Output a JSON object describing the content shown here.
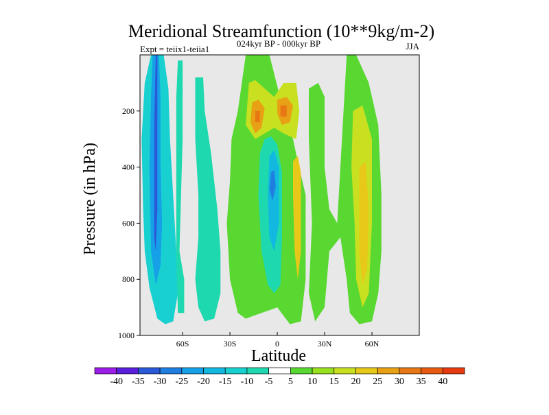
{
  "chart_data": {
    "type": "contour",
    "title": "Meridional Streamfunction (10**9kg/m-2)",
    "experiment_label": "Expt = teiix1-teiia1",
    "center_subtitle": "024kyr BP - 000kyr BP",
    "season": "JJA",
    "xlabel": "Latitude",
    "ylabel": "Pressure (in hPa)",
    "x_ticks": [
      {
        "value": -60,
        "label": "60S"
      },
      {
        "value": -30,
        "label": "30S"
      },
      {
        "value": 0,
        "label": "0"
      },
      {
        "value": 30,
        "label": "30N"
      },
      {
        "value": 60,
        "label": "60N"
      }
    ],
    "y_ticks": [
      {
        "value": 200,
        "label": "200"
      },
      {
        "value": 400,
        "label": "400"
      },
      {
        "value": 600,
        "label": "600"
      },
      {
        "value": 800,
        "label": "800"
      },
      {
        "value": 1000,
        "label": "1000"
      }
    ],
    "xlim": [
      -87,
      90
    ],
    "ylim": [
      1000,
      0
    ],
    "background_color": "#e8e8e8",
    "colorbar": {
      "labels": [
        "-40",
        "-35",
        "-30",
        "-25",
        "-20",
        "-15",
        "-10",
        "-5",
        "5",
        "10",
        "15",
        "20",
        "25",
        "30",
        "35",
        "40"
      ],
      "colors": [
        "#9b1de6",
        "#5a1fdc",
        "#2a5ad8",
        "#1f7ee0",
        "#15a0e8",
        "#12b8e0",
        "#18d0d0",
        "#1ed8b0",
        "#ffffff",
        "#5ad832",
        "#98e020",
        "#c8e020",
        "#e8c818",
        "#e8a015",
        "#e87815",
        "#e85a12",
        "#e83a10"
      ]
    },
    "regions": [
      {
        "name": "southern-neg-cell-outer",
        "level": -10,
        "color": "#18d0d0",
        "pts": [
          [
            -86,
            300
          ],
          [
            -84,
            100
          ],
          [
            -80,
            0
          ],
          [
            -72,
            0
          ],
          [
            -69,
            120
          ],
          [
            -68,
            300
          ],
          [
            -66,
            500
          ],
          [
            -64,
            700
          ],
          [
            -63,
            850
          ],
          [
            -66,
            950
          ],
          [
            -71,
            960
          ],
          [
            -76,
            940
          ],
          [
            -81,
            830
          ],
          [
            -84,
            700
          ],
          [
            -85,
            550
          ]
        ]
      },
      {
        "name": "southern-neg-cell-mid",
        "level": -20,
        "color": "#15a0e8",
        "pts": [
          [
            -81,
            400
          ],
          [
            -80,
            150
          ],
          [
            -79,
            0
          ],
          [
            -75,
            0
          ],
          [
            -74,
            150
          ],
          [
            -74,
            400
          ],
          [
            -73,
            600
          ],
          [
            -74,
            750
          ],
          [
            -77,
            820
          ],
          [
            -80,
            700
          ]
        ]
      },
      {
        "name": "southern-neg-cell-core",
        "level": -30,
        "color": "#2a5ad8",
        "pts": [
          [
            -78,
            500
          ],
          [
            -78,
            250
          ],
          [
            -77,
            0
          ],
          [
            -76,
            0
          ],
          [
            -76,
            250
          ],
          [
            -76,
            550
          ],
          [
            -77,
            700
          ],
          [
            -78,
            650
          ]
        ]
      },
      {
        "name": "midlat-south-neg",
        "level": -5,
        "color": "#1ed8b0",
        "pts": [
          [
            -63,
            20
          ],
          [
            -60,
            20
          ],
          [
            -60,
            300
          ],
          [
            -61,
            500
          ],
          [
            -62,
            700
          ],
          [
            -59,
            800
          ],
          [
            -59,
            920
          ],
          [
            -63,
            920
          ],
          [
            -64,
            700
          ],
          [
            -64,
            450
          ],
          [
            -64,
            150
          ]
        ]
      },
      {
        "name": "midlat-south-neg2",
        "level": -5,
        "color": "#1ed8b0",
        "pts": [
          [
            -52,
            80
          ],
          [
            -47,
            80
          ],
          [
            -46,
            200
          ],
          [
            -42,
            350
          ],
          [
            -38,
            550
          ],
          [
            -36,
            700
          ],
          [
            -36,
            850
          ],
          [
            -40,
            940
          ],
          [
            -46,
            950
          ],
          [
            -50,
            900
          ],
          [
            -52,
            800
          ],
          [
            -50,
            650
          ],
          [
            -50,
            500
          ],
          [
            -52,
            300
          ]
        ]
      },
      {
        "name": "isolated-neg-dot",
        "level": -5,
        "color": "#1ed8b0",
        "pts": [
          [
            -61,
            870
          ],
          [
            -60,
            870
          ],
          [
            -60,
            890
          ],
          [
            -61,
            890
          ]
        ]
      },
      {
        "name": "tropical-pos-band",
        "level": 10,
        "color": "#5ad832",
        "pts": [
          [
            -30,
            450
          ],
          [
            -29,
            300
          ],
          [
            -25,
            200
          ],
          [
            -20,
            0
          ],
          [
            -5,
            0
          ],
          [
            4,
            200
          ],
          [
            10,
            300
          ],
          [
            13,
            380
          ],
          [
            18,
            500
          ],
          [
            18,
            800
          ],
          [
            15,
            950
          ],
          [
            8,
            960
          ],
          [
            0,
            900
          ],
          [
            -10,
            920
          ],
          [
            -20,
            940
          ],
          [
            -25,
            920
          ],
          [
            -30,
            800
          ],
          [
            -32,
            600
          ]
        ]
      },
      {
        "name": "tropical-pos-upper",
        "level": 20,
        "color": "#c8e020",
        "pts": [
          [
            -18,
            100
          ],
          [
            -14,
            90
          ],
          [
            -8,
            120
          ],
          [
            -2,
            150
          ],
          [
            4,
            100
          ],
          [
            12,
            100
          ],
          [
            14,
            200
          ],
          [
            12,
            300
          ],
          [
            4,
            280
          ],
          [
            -2,
            260
          ],
          [
            -8,
            280
          ],
          [
            -14,
            300
          ],
          [
            -20,
            250
          ]
        ]
      },
      {
        "name": "tropical-pos-jet-w",
        "level": 30,
        "color": "#e8a015",
        "pts": [
          [
            -16,
            170
          ],
          [
            -12,
            160
          ],
          [
            -8,
            190
          ],
          [
            -10,
            260
          ],
          [
            -14,
            280
          ],
          [
            -17,
            240
          ]
        ]
      },
      {
        "name": "tropical-pos-jet-e",
        "level": 30,
        "color": "#e8a015",
        "pts": [
          [
            0,
            160
          ],
          [
            6,
            150
          ],
          [
            10,
            180
          ],
          [
            8,
            240
          ],
          [
            3,
            250
          ],
          [
            0,
            210
          ]
        ]
      },
      {
        "name": "tropical-pos-jet-w-core",
        "level": 35,
        "color": "#e87815",
        "pts": [
          [
            -14,
            200
          ],
          [
            -11,
            200
          ],
          [
            -11,
            240
          ],
          [
            -14,
            240
          ]
        ]
      },
      {
        "name": "tropical-pos-jet-e-core",
        "level": 35,
        "color": "#e87815",
        "pts": [
          [
            2,
            180
          ],
          [
            6,
            180
          ],
          [
            6,
            220
          ],
          [
            2,
            220
          ]
        ]
      },
      {
        "name": "nh-pos-midlat-outer",
        "level": 10,
        "color": "#5ad832",
        "pts": [
          [
            20,
            120
          ],
          [
            26,
            100
          ],
          [
            30,
            150
          ],
          [
            30,
            400
          ],
          [
            33,
            550
          ],
          [
            38,
            600
          ],
          [
            44,
            0
          ],
          [
            50,
            0
          ],
          [
            58,
            100
          ],
          [
            64,
            250
          ],
          [
            66,
            500
          ],
          [
            66,
            700
          ],
          [
            64,
            850
          ],
          [
            60,
            950
          ],
          [
            52,
            960
          ],
          [
            46,
            920
          ],
          [
            44,
            800
          ],
          [
            40,
            650
          ],
          [
            33,
            700
          ],
          [
            30,
            900
          ],
          [
            24,
            950
          ],
          [
            20,
            850
          ],
          [
            22,
            600
          ],
          [
            20,
            300
          ]
        ]
      },
      {
        "name": "nh-pos-midlat-inner",
        "level": 20,
        "color": "#c8e020",
        "pts": [
          [
            48,
            200
          ],
          [
            54,
            180
          ],
          [
            60,
            300
          ],
          [
            60,
            600
          ],
          [
            58,
            850
          ],
          [
            54,
            900
          ],
          [
            50,
            800
          ],
          [
            49,
            600
          ],
          [
            47,
            400
          ]
        ]
      },
      {
        "name": "nh-pos-midlat-core",
        "level": 25,
        "color": "#e8c818",
        "pts": [
          [
            52,
            400
          ],
          [
            56,
            380
          ],
          [
            58,
            550
          ],
          [
            57,
            760
          ],
          [
            54,
            820
          ],
          [
            52,
            700
          ]
        ]
      },
      {
        "name": "tropical-neg-cell",
        "level": -5,
        "color": "#1ed8b0",
        "pts": [
          [
            -8,
            300
          ],
          [
            -4,
            290
          ],
          [
            0,
            320
          ],
          [
            3,
            420
          ],
          [
            3,
            650
          ],
          [
            2,
            820
          ],
          [
            -2,
            850
          ],
          [
            -6,
            820
          ],
          [
            -10,
            700
          ],
          [
            -12,
            500
          ],
          [
            -11,
            350
          ]
        ]
      },
      {
        "name": "tropical-neg-mid",
        "level": -15,
        "color": "#12b8e0",
        "pts": [
          [
            -5,
            360
          ],
          [
            -2,
            340
          ],
          [
            1,
            400
          ],
          [
            1,
            600
          ],
          [
            -2,
            700
          ],
          [
            -5,
            650
          ],
          [
            -6,
            500
          ]
        ]
      },
      {
        "name": "tropical-neg-core",
        "level": -25,
        "color": "#1f7ee0",
        "pts": [
          [
            -4,
            420
          ],
          [
            -2,
            410
          ],
          [
            -1,
            470
          ],
          [
            -3,
            520
          ],
          [
            -5,
            480
          ]
        ]
      },
      {
        "name": "tropical-pos-east-core",
        "level": 25,
        "color": "#e8c818",
        "pts": [
          [
            10,
            380
          ],
          [
            13,
            360
          ],
          [
            15,
            420
          ],
          [
            15,
            700
          ],
          [
            13,
            800
          ],
          [
            11,
            700
          ],
          [
            10,
            500
          ]
        ]
      }
    ]
  }
}
